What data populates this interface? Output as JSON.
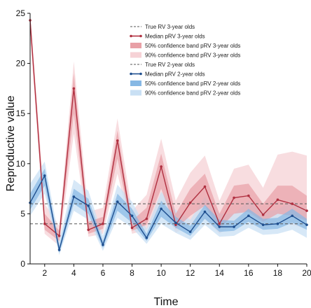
{
  "chart_data": {
    "type": "line",
    "xlabel": "Time",
    "ylabel": "Reproductive value",
    "xlim": [
      1,
      20
    ],
    "ylim": [
      0,
      25
    ],
    "xticks": [
      "2",
      "4",
      "6",
      "8",
      "10",
      "12",
      "14",
      "16",
      "18",
      "20"
    ],
    "yticks": [
      "0",
      "5",
      "10",
      "15",
      "20",
      "25"
    ],
    "grid": false,
    "legend_position": "top-right",
    "x": [
      1,
      2,
      3,
      4,
      5,
      6,
      7,
      8,
      9,
      10,
      11,
      12,
      13,
      14,
      15,
      16,
      17,
      18,
      19,
      20
    ],
    "true_rv_3yo": 6.0,
    "true_rv_2yo": 4.0,
    "series": [
      {
        "name": "Median pRV 3-year olds",
        "color": "#b03040",
        "values": [
          24.3,
          4.0,
          2.8,
          17.5,
          3.4,
          4.0,
          12.3,
          3.6,
          4.5,
          9.7,
          3.9,
          6.1,
          7.7,
          4.0,
          6.6,
          6.8,
          4.9,
          6.4,
          6.0,
          5.3
        ],
        "band50_low": [
          23.5,
          3.4,
          2.3,
          15.0,
          3.0,
          3.5,
          10.5,
          3.3,
          3.9,
          7.5,
          3.5,
          4.8,
          5.8,
          3.5,
          5.0,
          5.2,
          4.2,
          5.0,
          4.8,
          4.3
        ],
        "band50_high": [
          25.0,
          5.0,
          3.3,
          19.0,
          4.2,
          4.7,
          13.3,
          4.3,
          5.6,
          11.0,
          5.0,
          7.5,
          9.0,
          5.0,
          7.8,
          8.0,
          6.0,
          7.8,
          7.8,
          6.8
        ],
        "band90_low": [
          22.8,
          3.0,
          1.8,
          13.0,
          2.7,
          3.0,
          9.0,
          3.0,
          3.4,
          6.0,
          3.1,
          3.9,
          4.5,
          3.0,
          4.0,
          4.2,
          3.5,
          4.0,
          3.9,
          3.5
        ],
        "band90_high": [
          25.0,
          6.0,
          3.8,
          20.2,
          5.2,
          5.6,
          14.5,
          5.3,
          6.9,
          12.5,
          6.3,
          9.1,
          10.8,
          6.3,
          9.5,
          9.9,
          7.6,
          10.9,
          11.2,
          10.8
        ],
        "band50_color": "#e8a0a6",
        "band90_color": "#f6d2d6"
      },
      {
        "name": "Median pRV 2-year olds",
        "color": "#1f4f8f",
        "values": [
          6.1,
          8.8,
          1.4,
          6.7,
          5.8,
          1.9,
          6.2,
          4.8,
          2.6,
          5.5,
          4.1,
          3.2,
          5.2,
          3.7,
          3.7,
          4.8,
          3.9,
          4.0,
          4.8,
          3.9
        ],
        "band50_low": [
          5.4,
          7.8,
          1.1,
          6.0,
          5.0,
          1.6,
          5.3,
          4.1,
          2.3,
          4.7,
          3.6,
          2.8,
          4.5,
          3.2,
          3.3,
          4.2,
          3.4,
          3.5,
          4.1,
          3.4
        ],
        "band50_high": [
          7.0,
          9.5,
          1.8,
          7.5,
          6.5,
          2.3,
          7.0,
          5.5,
          3.0,
          6.3,
          4.7,
          3.8,
          5.9,
          4.4,
          4.3,
          5.5,
          4.5,
          4.6,
          5.5,
          4.5
        ],
        "band90_low": [
          4.8,
          7.0,
          0.9,
          5.3,
          4.4,
          1.3,
          4.6,
          3.6,
          2.0,
          4.0,
          3.1,
          2.4,
          3.9,
          2.7,
          2.8,
          3.6,
          2.9,
          3.0,
          3.4,
          2.6
        ],
        "band90_high": [
          8.0,
          10.2,
          2.4,
          8.4,
          7.3,
          2.8,
          7.9,
          6.2,
          3.5,
          7.2,
          5.4,
          4.4,
          6.7,
          5.0,
          5.0,
          6.3,
          5.2,
          5.4,
          6.3,
          5.4
        ],
        "band50_color": "#86b8e4",
        "band90_color": "#c9e0f4"
      }
    ],
    "legend": [
      {
        "label": "True RV 3-year olds",
        "kind": "dashed",
        "color": "#555555"
      },
      {
        "label": "Median pRV 3-year olds",
        "kind": "line-marker",
        "color": "#b03040"
      },
      {
        "label": "50% confidence band pRV 3-year olds",
        "kind": "patch",
        "color": "#e8a0a6"
      },
      {
        "label": "90% confidence band pRV 3-year olds",
        "kind": "patch",
        "color": "#f6d2d6"
      },
      {
        "label": "True RV 2-year olds",
        "kind": "dashed",
        "color": "#555555"
      },
      {
        "label": "Median pRV 2-year olds",
        "kind": "line-marker",
        "color": "#1f4f8f"
      },
      {
        "label": "50% confidence band pRV 2-year olds",
        "kind": "patch",
        "color": "#86b8e4"
      },
      {
        "label": "90% confidence band pRV 2-year olds",
        "kind": "patch",
        "color": "#c9e0f4"
      }
    ]
  }
}
